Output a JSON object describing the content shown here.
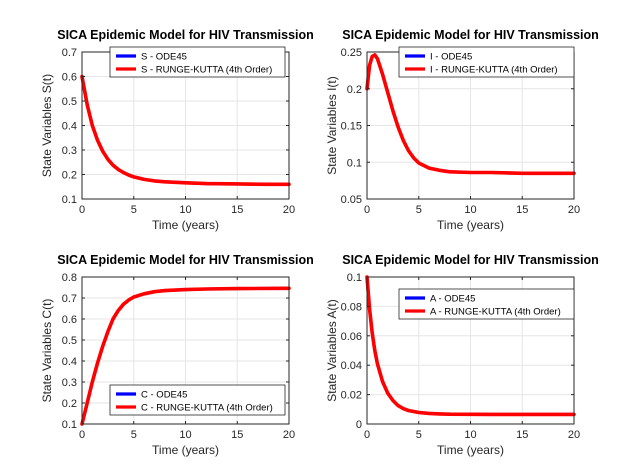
{
  "figure": {
    "background": "#ffffff",
    "colors": {
      "ode45": "#0000ff",
      "rk4": "#ff0000",
      "grid": "#e6e6e6",
      "axis": "#262626"
    }
  },
  "chart_data": [
    {
      "type": "line",
      "title": "SICA Epidemic Model for HIV Transmission",
      "xlabel": "Time (years)",
      "ylabel": "State Variables S(t)",
      "xlim": [
        0,
        20
      ],
      "ylim": [
        0.1,
        0.7
      ],
      "xticks": [
        0,
        5,
        10,
        15,
        20
      ],
      "xtick_labels": [
        "0",
        "5",
        "10",
        "15",
        "20"
      ],
      "yticks": [
        0.1,
        0.2,
        0.3,
        0.4,
        0.5,
        0.6,
        0.7
      ],
      "ytick_labels": [
        "0.1",
        "0.2",
        "0.3",
        "0.4",
        "0.5",
        "0.6",
        "0.7"
      ],
      "grid": true,
      "legend_position": "top-right",
      "x": [
        0,
        0.5,
        1,
        1.5,
        2,
        2.5,
        3,
        3.5,
        4,
        4.5,
        5,
        6,
        7,
        8,
        9,
        10,
        12,
        14,
        16,
        18,
        20
      ],
      "series": [
        {
          "name": "S - ODE45",
          "values": [
            0.6,
            0.485,
            0.4,
            0.34,
            0.295,
            0.262,
            0.238,
            0.221,
            0.208,
            0.198,
            0.19,
            0.18,
            0.174,
            0.17,
            0.168,
            0.166,
            0.163,
            0.162,
            0.161,
            0.16,
            0.16
          ]
        },
        {
          "name": "S - RUNGE-KUTTA (4th Order)",
          "values": [
            0.6,
            0.485,
            0.4,
            0.34,
            0.295,
            0.262,
            0.238,
            0.221,
            0.208,
            0.198,
            0.19,
            0.18,
            0.174,
            0.17,
            0.168,
            0.166,
            0.163,
            0.162,
            0.161,
            0.16,
            0.16
          ]
        }
      ]
    },
    {
      "type": "line",
      "title": "SICA Epidemic Model for HIV Transmission",
      "xlabel": "Time (years)",
      "ylabel": "State Variables I(t)",
      "xlim": [
        0,
        20
      ],
      "ylim": [
        0.05,
        0.25
      ],
      "xticks": [
        0,
        5,
        10,
        15,
        20
      ],
      "xtick_labels": [
        "0",
        "5",
        "10",
        "15",
        "20"
      ],
      "yticks": [
        0.05,
        0.1,
        0.15,
        0.2,
        0.25
      ],
      "ytick_labels": [
        "0.05",
        "0.1",
        "0.15",
        "0.2",
        "0.25"
      ],
      "grid": true,
      "legend_position": "top-right",
      "x": [
        0,
        0.25,
        0.5,
        0.75,
        1,
        1.5,
        2,
        2.5,
        3,
        3.5,
        4,
        4.5,
        5,
        6,
        7,
        8,
        10,
        12,
        15,
        20
      ],
      "series": [
        {
          "name": "I - ODE45",
          "values": [
            0.2,
            0.232,
            0.244,
            0.246,
            0.241,
            0.22,
            0.195,
            0.17,
            0.148,
            0.13,
            0.116,
            0.106,
            0.099,
            0.092,
            0.089,
            0.087,
            0.086,
            0.086,
            0.085,
            0.085
          ]
        },
        {
          "name": "I - RUNGE-KUTTA (4th Order)",
          "values": [
            0.2,
            0.232,
            0.244,
            0.246,
            0.241,
            0.22,
            0.195,
            0.17,
            0.148,
            0.13,
            0.116,
            0.106,
            0.099,
            0.092,
            0.089,
            0.087,
            0.086,
            0.086,
            0.085,
            0.085
          ]
        }
      ]
    },
    {
      "type": "line",
      "title": "SICA Epidemic Model for HIV Transmission",
      "xlabel": "Time (years)",
      "ylabel": "State Variables C(t)",
      "xlim": [
        0,
        20
      ],
      "ylim": [
        0.1,
        0.8
      ],
      "xticks": [
        0,
        5,
        10,
        15,
        20
      ],
      "xtick_labels": [
        "0",
        "5",
        "10",
        "15",
        "20"
      ],
      "yticks": [
        0.1,
        0.2,
        0.3,
        0.4,
        0.5,
        0.6,
        0.7,
        0.8
      ],
      "ytick_labels": [
        "0.1",
        "0.2",
        "0.3",
        "0.4",
        "0.5",
        "0.6",
        "0.7",
        "0.8"
      ],
      "grid": true,
      "legend_position": "bottom-right",
      "x": [
        0,
        0.5,
        1,
        1.5,
        2,
        2.5,
        3,
        3.5,
        4,
        4.5,
        5,
        6,
        7,
        8,
        10,
        12,
        15,
        20
      ],
      "series": [
        {
          "name": "C - ODE45",
          "values": [
            0.1,
            0.2,
            0.3,
            0.39,
            0.47,
            0.54,
            0.6,
            0.64,
            0.67,
            0.69,
            0.705,
            0.72,
            0.73,
            0.735,
            0.74,
            0.743,
            0.745,
            0.746
          ]
        },
        {
          "name": "C - RUNGE-KUTTA (4th Order)",
          "values": [
            0.1,
            0.2,
            0.3,
            0.39,
            0.47,
            0.54,
            0.6,
            0.64,
            0.67,
            0.69,
            0.705,
            0.72,
            0.73,
            0.735,
            0.74,
            0.743,
            0.745,
            0.746
          ]
        }
      ]
    },
    {
      "type": "line",
      "title": "SICA Epidemic Model for HIV Transmission",
      "xlabel": "Time (years)",
      "ylabel": "State Variables A(t)",
      "xlim": [
        0,
        20
      ],
      "ylim": [
        0,
        0.1
      ],
      "xticks": [
        0,
        5,
        10,
        15,
        20
      ],
      "xtick_labels": [
        "0",
        "5",
        "10",
        "15",
        "20"
      ],
      "yticks": [
        0,
        0.02,
        0.04,
        0.06,
        0.08,
        0.1
      ],
      "ytick_labels": [
        "0",
        "0.02",
        "0.04",
        "0.06",
        "0.08",
        "0.1"
      ],
      "grid": true,
      "legend_position": "top-right",
      "x": [
        0,
        0.25,
        0.5,
        0.75,
        1,
        1.5,
        2,
        2.5,
        3,
        3.5,
        4,
        5,
        6,
        7,
        8,
        10,
        12,
        15,
        20
      ],
      "series": [
        {
          "name": "A - ODE45",
          "values": [
            0.1,
            0.078,
            0.062,
            0.05,
            0.041,
            0.029,
            0.021,
            0.016,
            0.0125,
            0.0105,
            0.0092,
            0.0078,
            0.0072,
            0.0069,
            0.0067,
            0.0066,
            0.0065,
            0.0065,
            0.0065
          ]
        },
        {
          "name": "A - RUNGE-KUTTA (4th Order)",
          "values": [
            0.1,
            0.078,
            0.062,
            0.05,
            0.041,
            0.029,
            0.021,
            0.016,
            0.0125,
            0.0105,
            0.0092,
            0.0078,
            0.0072,
            0.0069,
            0.0067,
            0.0066,
            0.0065,
            0.0065,
            0.0065
          ]
        }
      ]
    }
  ]
}
